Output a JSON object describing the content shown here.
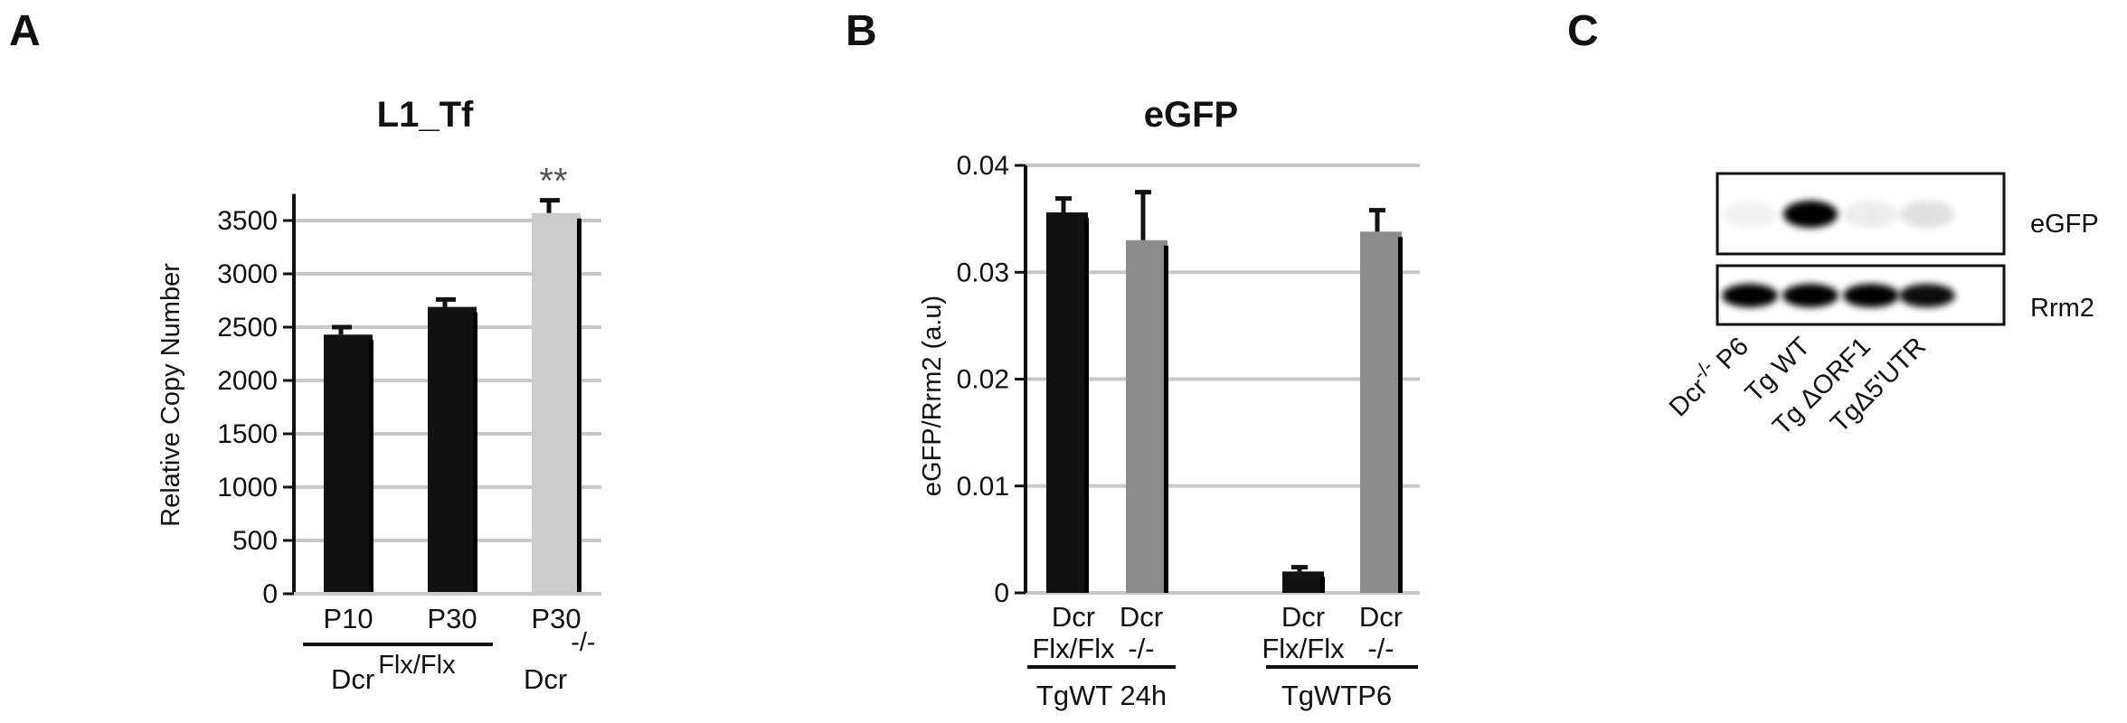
{
  "panels": {
    "a": {
      "letter": "A"
    },
    "b": {
      "letter": "B"
    },
    "c": {
      "letter": "C"
    }
  },
  "chart_data": [
    {
      "type": "bar",
      "title": "L1_Tf",
      "xlabel": "",
      "ylabel": "Relative Copy Number",
      "ylim": [
        0,
        4000
      ],
      "yticks": [
        0,
        500,
        1000,
        1500,
        2000,
        2500,
        3000,
        3500
      ],
      "grid": true,
      "categories": [
        "P10",
        "P30",
        "P30"
      ],
      "values": [
        2430,
        2690,
        3570
      ],
      "errors": [
        70,
        70,
        120
      ],
      "colors": [
        "#111111",
        "#111111",
        "#cccccc"
      ],
      "annotations": [
        {
          "category_index": 2,
          "text": "**"
        }
      ],
      "groups": [
        {
          "label": "Dcr",
          "superscript": "Flx/Flx",
          "span": [
            0,
            1
          ]
        },
        {
          "label": "Dcr",
          "superscript": "-/-",
          "span": [
            2,
            2
          ]
        }
      ]
    },
    {
      "type": "bar",
      "title": "eGFP",
      "xlabel": "",
      "ylabel": "eGFP/Rrm2 (a.u)",
      "ylim": [
        0,
        0.04
      ],
      "yticks": [
        "0",
        "0.01",
        "0.02",
        "0.03",
        "0.04"
      ],
      "grid": true,
      "categories": [
        "Dcr Flx/Flx",
        "Dcr -/-",
        "Dcr Flx/Flx",
        "Dcr -/-"
      ],
      "category_lines": [
        [
          "Dcr",
          "Flx/Flx"
        ],
        [
          "Dcr",
          "-/-"
        ],
        [
          "Dcr",
          "Flx/Flx"
        ],
        [
          "Dcr",
          "-/-"
        ]
      ],
      "values": [
        0.0356,
        0.033,
        0.002,
        0.0338
      ],
      "errors": [
        0.0013,
        0.0045,
        0.0004,
        0.002
      ],
      "colors": [
        "#111111",
        "#8c8c8c",
        "#111111",
        "#8c8c8c"
      ],
      "groups": [
        {
          "label": "TgWT 24h",
          "span": [
            0,
            1
          ]
        },
        {
          "label": "TgWTP6",
          "span": [
            2,
            3
          ]
        }
      ]
    }
  ],
  "blot": {
    "rows": [
      "eGFP",
      "Rrm2"
    ],
    "lanes": [
      {
        "prefix": "Dcr",
        "superscript": "-/-",
        "suffix": " P6"
      },
      {
        "prefix": "Tg WT",
        "superscript": "",
        "suffix": ""
      },
      {
        "prefix": "Tg ",
        "delta": "Δ",
        "suffix": "ORF1"
      },
      {
        "prefix": "Tg",
        "delta": "Δ",
        "suffix": "5'UTR"
      }
    ],
    "egfp_intensity": [
      0.05,
      1.0,
      0.07,
      0.12
    ],
    "rrm2_intensity": [
      1.0,
      1.0,
      1.0,
      0.95
    ]
  }
}
